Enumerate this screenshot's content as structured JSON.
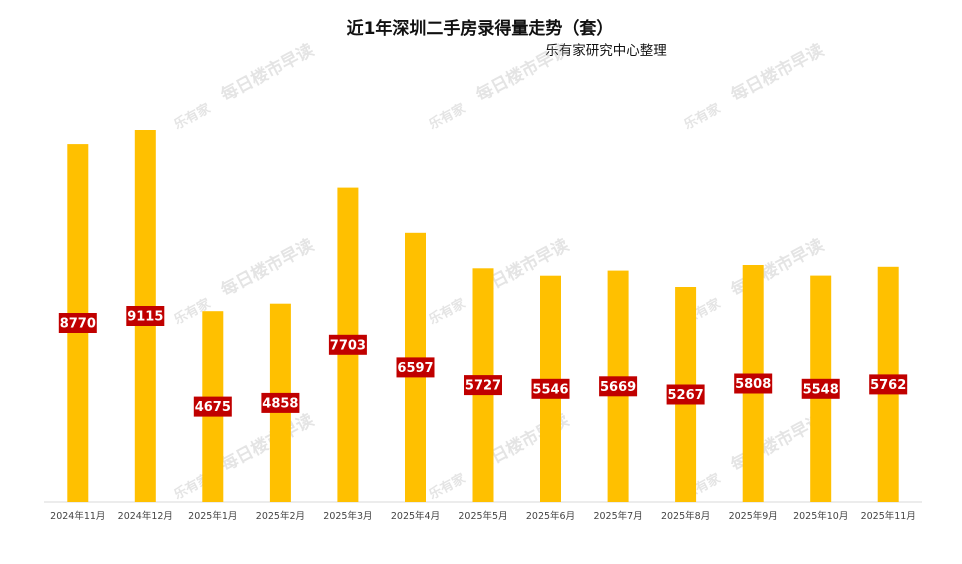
{
  "chart_data": {
    "type": "bar",
    "title": "近1年深圳二手房录得量走势（套）",
    "subtitle": "乐有家研究中心整理",
    "watermark": "每日楼市早读",
    "watermark_logo": "乐有家",
    "categories": [
      "2024年11月",
      "2024年12月",
      "2025年1月",
      "2025年2月",
      "2025年3月",
      "2025年4月",
      "2025年5月",
      "2025年6月",
      "2025年7月",
      "2025年8月",
      "2025年9月",
      "2025年10月",
      "2025年11月"
    ],
    "values": [
      8770,
      9115,
      4675,
      4858,
      7703,
      6597,
      5727,
      5546,
      5669,
      5267,
      5808,
      5548,
      5762
    ],
    "ylim": [
      0,
      10000
    ],
    "grid": false,
    "legend": "none",
    "colors": {
      "bar": "#FFC000",
      "label_bg": "#C00000",
      "label_text": "#FFFFFF"
    }
  }
}
